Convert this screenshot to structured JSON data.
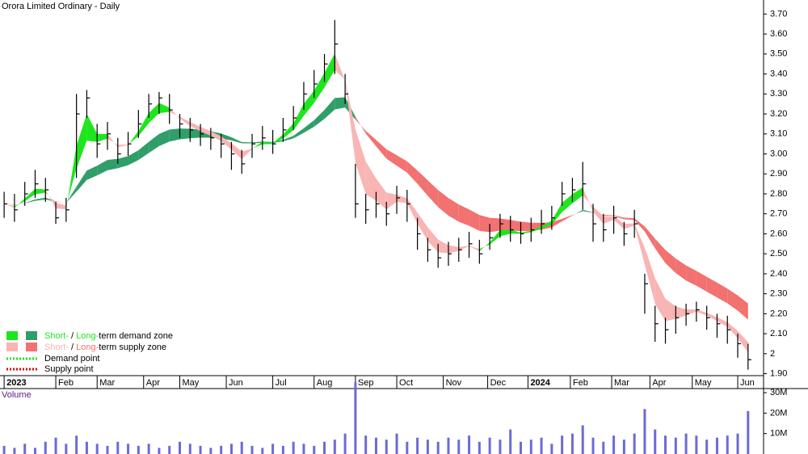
{
  "chart_data": {
    "type": "ohlc",
    "title": "Orora Limited Ordinary - Daily",
    "xlim": [
      -0.4,
      73.5
    ],
    "xticks": [
      {
        "value": 0,
        "label": "2023"
      },
      {
        "value": 5,
        "label": "Feb"
      },
      {
        "value": 9,
        "label": "Mar"
      },
      {
        "value": 13.5,
        "label": "Apr"
      },
      {
        "value": 17,
        "label": "May"
      },
      {
        "value": 21.5,
        "label": "Jun"
      },
      {
        "value": 26,
        "label": "Jul"
      },
      {
        "value": 30,
        "label": "Aug"
      },
      {
        "value": 34,
        "label": "Sep"
      },
      {
        "value": 38,
        "label": "Oct"
      },
      {
        "value": 42.5,
        "label": "Nov"
      },
      {
        "value": 46.8,
        "label": "Dec"
      },
      {
        "value": 50.7,
        "label": "2024"
      },
      {
        "value": 54.8,
        "label": "Feb"
      },
      {
        "value": 58.8,
        "label": "Mar"
      },
      {
        "value": 62.5,
        "label": "Apr"
      },
      {
        "value": 66.6,
        "label": "May"
      },
      {
        "value": 71,
        "label": "Jun"
      }
    ],
    "ylim": [
      1.87,
      3.75
    ],
    "yticks": [
      {
        "value": 1.9,
        "label": "1.90"
      },
      2,
      {
        "value": 2.1,
        "label": "2.10"
      },
      {
        "value": 2.2,
        "label": "2.20"
      },
      {
        "value": 2.3,
        "label": "2.30"
      },
      {
        "value": 2.4,
        "label": "2.40"
      },
      {
        "value": 2.5,
        "label": "2.50"
      },
      {
        "value": 2.6,
        "label": "2.60"
      },
      {
        "value": 2.7,
        "label": "2.70"
      },
      {
        "value": 2.8,
        "label": "2.80"
      },
      {
        "value": 2.9,
        "label": "2.90"
      },
      {
        "value": 3,
        "label": "3.00"
      },
      {
        "value": 3.1,
        "label": "3.10"
      },
      {
        "value": 3.2,
        "label": "3.20"
      },
      {
        "value": 3.3,
        "label": "3.30"
      },
      {
        "value": 3.4,
        "label": "3.40"
      },
      {
        "value": 3.5,
        "label": "3.50"
      },
      {
        "value": 3.6,
        "label": "3.60"
      },
      {
        "value": 3.7,
        "label": "3.70"
      }
    ],
    "color": "#000000",
    "close": [
      2.75,
      2.72,
      2.8,
      2.85,
      2.82,
      2.68,
      2.72,
      3.2,
      3.28,
      3.05,
      3.1,
      3.0,
      3.05,
      3.15,
      3.25,
      3.28,
      3.22,
      3.15,
      3.12,
      3.1,
      3.08,
      3.05,
      3.0,
      2.95,
      3.05,
      3.08,
      3.05,
      3.12,
      3.18,
      3.3,
      3.35,
      3.45,
      3.55,
      3.3,
      2.75,
      2.72,
      2.75,
      2.7,
      2.78,
      2.75,
      2.6,
      2.52,
      2.48,
      2.5,
      2.52,
      2.55,
      2.5,
      2.58,
      2.65,
      2.62,
      2.6,
      2.62,
      2.65,
      2.68,
      2.8,
      2.82,
      2.85,
      2.65,
      2.62,
      2.68,
      2.6,
      2.65,
      2.35,
      2.15,
      2.12,
      2.18,
      2.2,
      2.22,
      2.18,
      2.15,
      2.12,
      2.05,
      1.97
    ],
    "high": [
      2.81,
      2.8,
      2.86,
      2.92,
      2.88,
      2.76,
      2.78,
      3.3,
      3.32,
      3.15,
      3.16,
      3.08,
      3.11,
      3.22,
      3.3,
      3.31,
      3.3,
      3.2,
      3.18,
      3.15,
      3.13,
      3.1,
      3.06,
      3.02,
      3.1,
      3.14,
      3.12,
      3.18,
      3.24,
      3.36,
      3.42,
      3.5,
      3.67,
      3.4,
      2.95,
      2.8,
      2.81,
      2.76,
      2.84,
      2.82,
      2.68,
      2.58,
      2.55,
      2.56,
      2.58,
      2.61,
      2.57,
      2.65,
      2.7,
      2.69,
      2.66,
      2.68,
      2.72,
      2.74,
      2.86,
      2.88,
      2.96,
      2.75,
      2.7,
      2.74,
      2.66,
      2.72,
      2.4,
      2.24,
      2.18,
      2.24,
      2.25,
      2.26,
      2.24,
      2.2,
      2.19,
      2.1,
      2.05
    ],
    "low": [
      2.68,
      2.66,
      2.74,
      2.78,
      2.76,
      2.65,
      2.66,
      2.88,
      3.18,
      2.98,
      3.02,
      2.95,
      2.99,
      3.08,
      3.18,
      3.2,
      3.15,
      3.08,
      3.06,
      3.04,
      3.02,
      2.98,
      2.92,
      2.9,
      2.98,
      3.02,
      3.0,
      3.06,
      3.12,
      3.22,
      3.28,
      3.36,
      3.4,
      3.25,
      2.68,
      2.65,
      2.68,
      2.64,
      2.7,
      2.66,
      2.52,
      2.46,
      2.43,
      2.44,
      2.46,
      2.48,
      2.45,
      2.52,
      2.58,
      2.56,
      2.55,
      2.56,
      2.6,
      2.62,
      2.74,
      2.76,
      2.72,
      2.56,
      2.56,
      2.6,
      2.54,
      2.58,
      2.2,
      2.06,
      2.05,
      2.1,
      2.14,
      2.16,
      2.12,
      2.08,
      2.05,
      1.98,
      1.92
    ],
    "legend": [
      {
        "short": "Short-",
        "sep": " / ",
        "long": "Long-",
        "rest": "term demand zone",
        "short_color": "#1ee61e",
        "long_color": "#2f9e68"
      },
      {
        "short": "Short-",
        "sep": " / ",
        "long": "Long-",
        "rest": "term supply zone",
        "short_color": "#f9b4b4",
        "long_color": "#f27171"
      }
    ],
    "points": [
      {
        "label": "Demand point",
        "color": "#1ee61e"
      },
      {
        "label": "Supply point",
        "color": "#e00000"
      }
    ],
    "volume": {
      "title": "Volume",
      "color": "#6b6bd6",
      "ylim": [
        0,
        32
      ],
      "yticks": [
        {
          "value": 10,
          "label": "10M"
        },
        {
          "value": 20,
          "label": "20M"
        },
        {
          "value": 30,
          "label": "30M"
        }
      ],
      "values": [
        4,
        3,
        5,
        3,
        6,
        8,
        5,
        9,
        6,
        5,
        4,
        6,
        5,
        4,
        5,
        3,
        4,
        6,
        5,
        4,
        3,
        4,
        5,
        6,
        4,
        3,
        5,
        4,
        6,
        5,
        4,
        6,
        7,
        10,
        35,
        9,
        8,
        7,
        10,
        6,
        8,
        7,
        6,
        8,
        7,
        9,
        6,
        8,
        7,
        12,
        6,
        7,
        8,
        5,
        9,
        10,
        14,
        8,
        6,
        9,
        7,
        10,
        22,
        12,
        9,
        8,
        10,
        9,
        7,
        8,
        9,
        10,
        21
      ]
    }
  }
}
